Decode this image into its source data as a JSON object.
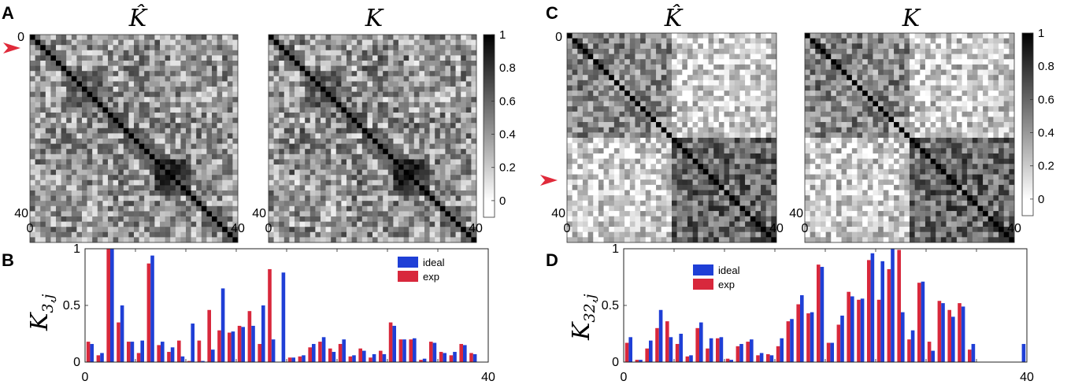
{
  "panels": {
    "A": {
      "label": "A",
      "titles": [
        "K̂",
        "K"
      ]
    },
    "B": {
      "label": "B",
      "ylabel_main": "K",
      "ylabel_sub": "3,j"
    },
    "C": {
      "label": "C",
      "titles": [
        "K̂",
        "K"
      ]
    },
    "D": {
      "label": "D",
      "ylabel_main": "K",
      "ylabel_sub": "32,j"
    }
  },
  "matrix_axis": {
    "start": "0",
    "end": "40"
  },
  "colorbar": {
    "ticks": [
      "0",
      "0.2",
      "0.4",
      "0.6",
      "0.8",
      "1"
    ],
    "colormap": "gray_r",
    "range": [
      -0.1,
      1
    ]
  },
  "colors": {
    "ideal": "#1f3fd6",
    "exp": "#d8283c",
    "arrow": "#e02a3a"
  },
  "chart_data": [
    {
      "type": "heatmap",
      "panel": "A",
      "title": "K̂",
      "size": 40,
      "colorbar": false,
      "note": "40x40 symmetric similarity matrix, unit diagonal, cluster block near indices 24-30; arrow marks row 3",
      "seed": 11,
      "blocks": [
        [
          7,
          13,
          0.55
        ],
        [
          24,
          30,
          0.75
        ],
        [
          18,
          22,
          0.5
        ]
      ],
      "noise": 0.35,
      "mode": "A"
    },
    {
      "type": "heatmap",
      "panel": "A",
      "title": "K",
      "size": 40,
      "colorbar": true,
      "seed": 11,
      "blocks": [
        [
          7,
          13,
          0.55
        ],
        [
          24,
          30,
          0.75
        ],
        [
          18,
          22,
          0.5
        ]
      ],
      "noise": 0.33,
      "mode": "A",
      "jitter": 0.06
    },
    {
      "type": "heatmap",
      "panel": "C",
      "title": "K̂",
      "size": 40,
      "colorbar": false,
      "note": "two-cluster structure (0-19, 20-39); arrow marks row 32",
      "seed": 23,
      "mode": "C"
    },
    {
      "type": "heatmap",
      "panel": "C",
      "title": "K",
      "size": 40,
      "colorbar": true,
      "seed": 23,
      "mode": "C",
      "jitter": 0.06
    },
    {
      "type": "bar",
      "panel": "B",
      "x": [
        1,
        2,
        3,
        4,
        5,
        6,
        7,
        8,
        9,
        10,
        11,
        12,
        13,
        14,
        15,
        16,
        17,
        18,
        19,
        20,
        21,
        22,
        23,
        24,
        25,
        26,
        27,
        28,
        29,
        30,
        31,
        32,
        33,
        34,
        35,
        36,
        37,
        38,
        39,
        40
      ],
      "series": [
        {
          "name": "ideal",
          "values": [
            0.16,
            0.08,
            1.0,
            0.5,
            0.18,
            0.19,
            0.94,
            0.18,
            0.13,
            0.05,
            0.34,
            0.01,
            0.11,
            0.65,
            0.27,
            0.31,
            0.32,
            0.5,
            0.2,
            0.79,
            0.04,
            0.06,
            0.16,
            0.22,
            0.09,
            0.2,
            0.06,
            0.1,
            0.07,
            0.07,
            0.32,
            0.2,
            0.21,
            0.03,
            0.17,
            0.08,
            0.09,
            0.15,
            0.07,
            0.0
          ]
        },
        {
          "name": "exp",
          "values": [
            0.18,
            0.06,
            1.0,
            0.35,
            0.18,
            0.08,
            0.87,
            0.15,
            0.09,
            0.19,
            0.01,
            0.19,
            0.46,
            0.28,
            0.26,
            0.32,
            0.45,
            0.16,
            0.82,
            0.0,
            0.04,
            0.05,
            0.13,
            0.18,
            0.12,
            0.16,
            0.05,
            0.12,
            0.04,
            0.1,
            0.35,
            0.2,
            0.2,
            0.02,
            0.18,
            0.09,
            0.06,
            0.16,
            0.08,
            0.0
          ]
        }
      ],
      "ylim": [
        0,
        1
      ],
      "xlim": [
        0,
        40
      ],
      "yticks": [
        "0",
        "0.5",
        "1"
      ],
      "xticks": [
        "0",
        "40"
      ],
      "legend": {
        "position": "top-right",
        "entries": [
          "ideal",
          "exp"
        ]
      }
    },
    {
      "type": "bar",
      "panel": "D",
      "x": [
        1,
        2,
        3,
        4,
        5,
        6,
        7,
        8,
        9,
        10,
        11,
        12,
        13,
        14,
        15,
        16,
        17,
        18,
        19,
        20,
        21,
        22,
        23,
        24,
        25,
        26,
        27,
        28,
        29,
        30,
        31,
        32,
        33,
        34,
        35,
        36,
        37,
        38,
        39,
        40
      ],
      "series": [
        {
          "name": "ideal",
          "values": [
            0.22,
            0.02,
            0.19,
            0.46,
            0.22,
            0.25,
            0.06,
            0.35,
            0.21,
            0.22,
            0.02,
            0.16,
            0.2,
            0.08,
            0.06,
            0.21,
            0.38,
            0.59,
            0.44,
            0.84,
            0.17,
            0.41,
            0.58,
            0.56,
            0.96,
            0.89,
            1.0,
            0.44,
            0.28,
            0.71,
            0.1,
            0.52,
            0.4,
            0.49,
            0.16,
            0.0,
            0.0,
            0.0,
            0.0,
            0.16
          ]
        },
        {
          "name": "exp",
          "values": [
            0.17,
            0.02,
            0.12,
            0.3,
            0.36,
            0.16,
            0.05,
            0.3,
            0.12,
            0.21,
            0.03,
            0.14,
            0.18,
            0.06,
            0.07,
            0.14,
            0.36,
            0.51,
            0.43,
            0.86,
            0.17,
            0.33,
            0.62,
            0.55,
            0.9,
            0.55,
            0.82,
            0.99,
            0.2,
            0.7,
            0.18,
            0.54,
            0.46,
            0.52,
            0.11,
            0.0,
            0.0,
            0.0,
            0.0,
            0.0
          ]
        }
      ],
      "ylim": [
        0,
        1
      ],
      "xlim": [
        0,
        40
      ],
      "yticks": [
        "0",
        "0.5",
        "1"
      ],
      "xticks": [
        "0",
        "40"
      ],
      "legend": {
        "position": "top-left",
        "entries": [
          "ideal",
          "exp"
        ]
      }
    }
  ]
}
